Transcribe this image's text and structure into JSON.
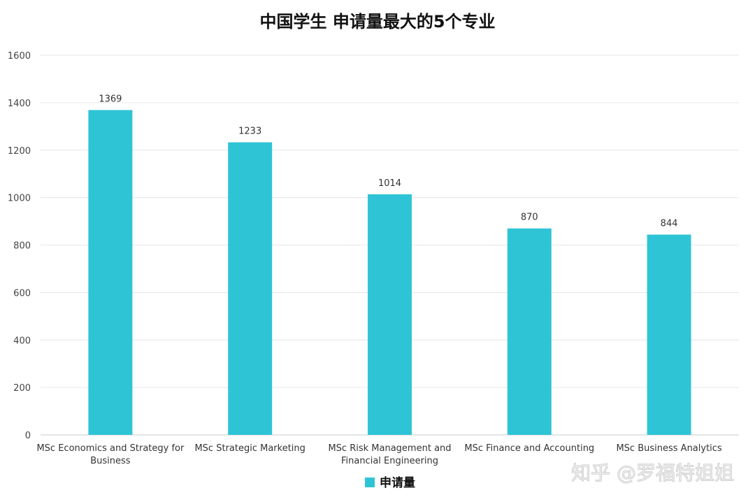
{
  "chart_data": {
    "type": "bar",
    "title": "中国学生 申请量最大的5个专业",
    "categories": [
      [
        "MSc Economics and Strategy for",
        "Business"
      ],
      [
        "MSc Strategic Marketing"
      ],
      [
        "MSc Risk Management and",
        "Financial Engineering"
      ],
      [
        "MSc Finance and Accounting"
      ],
      [
        "MSc Business Analytics"
      ]
    ],
    "series": [
      {
        "name": "申请量",
        "values": [
          1369,
          1233,
          1014,
          870,
          844
        ],
        "color": "#2ec4d6"
      }
    ],
    "ylim": [
      0,
      1600
    ],
    "yticks": [
      0,
      200,
      400,
      600,
      800,
      1000,
      1200,
      1400,
      1600
    ],
    "grid": true,
    "legend_position": "bottom"
  },
  "watermark": "知乎 @罗福特姐姐"
}
